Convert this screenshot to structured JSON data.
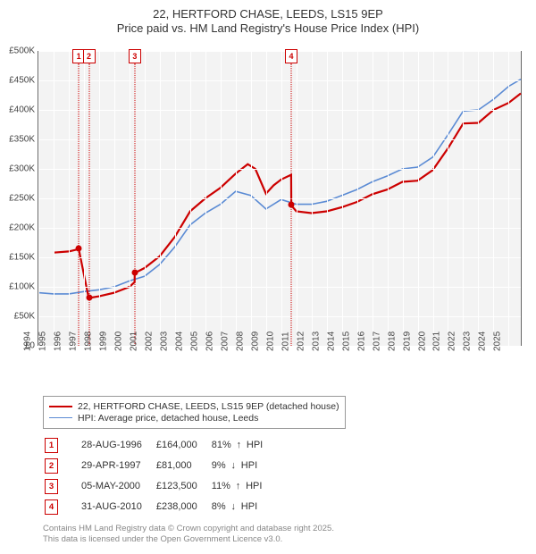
{
  "title_line1": "22, HERTFORD CHASE, LEEDS, LS15 9EP",
  "title_line2": "Price paid vs. HM Land Registry's House Price Index (HPI)",
  "colors": {
    "series_property": "#cc0000",
    "series_hpi": "#5b8bd4",
    "grid": "#ffffff",
    "plot_bg": "#f3f3f3",
    "marker_border": "#cc0000",
    "text": "#333333",
    "footer": "#888888"
  },
  "y_axis": {
    "min": 0,
    "max": 500000,
    "ticks": [
      0,
      50000,
      100000,
      150000,
      200000,
      250000,
      300000,
      350000,
      400000,
      450000,
      500000
    ],
    "labels": [
      "£0",
      "£50K",
      "£100K",
      "£150K",
      "£200K",
      "£250K",
      "£300K",
      "£350K",
      "£400K",
      "£450K",
      "£500K"
    ]
  },
  "x_axis": {
    "min": 1994,
    "max": 2025.8,
    "ticks": [
      1994,
      1995,
      1996,
      1997,
      1998,
      1999,
      2000,
      2001,
      2002,
      2003,
      2004,
      2005,
      2006,
      2007,
      2008,
      2009,
      2010,
      2011,
      2012,
      2013,
      2014,
      2015,
      2016,
      2017,
      2018,
      2019,
      2020,
      2021,
      2022,
      2023,
      2024,
      2025
    ]
  },
  "legend": [
    {
      "color": "#cc0000",
      "label": "22, HERTFORD CHASE, LEEDS, LS15 9EP (detached house)",
      "width": 2.5
    },
    {
      "color": "#5b8bd4",
      "label": "HPI: Average price, detached house, Leeds",
      "width": 1.6
    }
  ],
  "transactions": [
    {
      "n": "1",
      "date": "28-AUG-1996",
      "price": "£164,000",
      "pct": "81%",
      "dir": "up",
      "suffix": "HPI"
    },
    {
      "n": "2",
      "date": "29-APR-1997",
      "price": "£81,000",
      "pct": "9%",
      "dir": "down",
      "suffix": "HPI"
    },
    {
      "n": "3",
      "date": "05-MAY-2000",
      "price": "£123,500",
      "pct": "11%",
      "dir": "up",
      "suffix": "HPI"
    },
    {
      "n": "4",
      "date": "31-AUG-2010",
      "price": "£238,000",
      "pct": "8%",
      "dir": "down",
      "suffix": "HPI"
    }
  ],
  "markers_x": [
    1996.66,
    1997.33,
    2000.35,
    2010.67
  ],
  "series_hpi": [
    [
      1994,
      90000
    ],
    [
      1995,
      88000
    ],
    [
      1996,
      88000
    ],
    [
      1997,
      92000
    ],
    [
      1998,
      95000
    ],
    [
      1999,
      100000
    ],
    [
      2000,
      110000
    ],
    [
      2001,
      118000
    ],
    [
      2002,
      138000
    ],
    [
      2003,
      168000
    ],
    [
      2004,
      205000
    ],
    [
      2005,
      225000
    ],
    [
      2006,
      240000
    ],
    [
      2007,
      262000
    ],
    [
      2008,
      255000
    ],
    [
      2009,
      232000
    ],
    [
      2010,
      248000
    ],
    [
      2011,
      240000
    ],
    [
      2012,
      240000
    ],
    [
      2013,
      245000
    ],
    [
      2014,
      255000
    ],
    [
      2015,
      265000
    ],
    [
      2016,
      278000
    ],
    [
      2017,
      288000
    ],
    [
      2018,
      300000
    ],
    [
      2019,
      303000
    ],
    [
      2020,
      320000
    ],
    [
      2021,
      358000
    ],
    [
      2022,
      398000
    ],
    [
      2023,
      400000
    ],
    [
      2024,
      418000
    ],
    [
      2025,
      440000
    ],
    [
      2025.8,
      452000
    ]
  ],
  "series_property": [
    [
      1995,
      158000
    ],
    [
      1996,
      160000
    ],
    [
      1996.65,
      164000
    ],
    [
      1996.66,
      164000
    ],
    [
      1997.32,
      80000
    ],
    [
      1997.33,
      81000
    ],
    [
      1998,
      84000
    ],
    [
      1999,
      90000
    ],
    [
      2000,
      100000
    ],
    [
      2000.34,
      108000
    ],
    [
      2000.35,
      123500
    ],
    [
      2001,
      132000
    ],
    [
      2002,
      152000
    ],
    [
      2003,
      185000
    ],
    [
      2004,
      228000
    ],
    [
      2005,
      250000
    ],
    [
      2006,
      268000
    ],
    [
      2007,
      292000
    ],
    [
      2007.8,
      308000
    ],
    [
      2008.3,
      300000
    ],
    [
      2009,
      258000
    ],
    [
      2009.5,
      272000
    ],
    [
      2010,
      282000
    ],
    [
      2010.66,
      290000
    ],
    [
      2010.67,
      238000
    ],
    [
      2011,
      228000
    ],
    [
      2012,
      225000
    ],
    [
      2013,
      228000
    ],
    [
      2014,
      235000
    ],
    [
      2015,
      244000
    ],
    [
      2016,
      257000
    ],
    [
      2017,
      265000
    ],
    [
      2018,
      278000
    ],
    [
      2019,
      280000
    ],
    [
      2020,
      298000
    ],
    [
      2021,
      335000
    ],
    [
      2022,
      377000
    ],
    [
      2023,
      378000
    ],
    [
      2024,
      400000
    ],
    [
      2025,
      412000
    ],
    [
      2025.8,
      428000
    ]
  ],
  "sale_points": [
    [
      1996.66,
      164000
    ],
    [
      1997.33,
      81000
    ],
    [
      2000.35,
      123500
    ],
    [
      2010.67,
      238000
    ]
  ],
  "footer_line1": "Contains HM Land Registry data © Crown copyright and database right 2025.",
  "footer_line2": "This data is licensed under the Open Government Licence v3.0."
}
